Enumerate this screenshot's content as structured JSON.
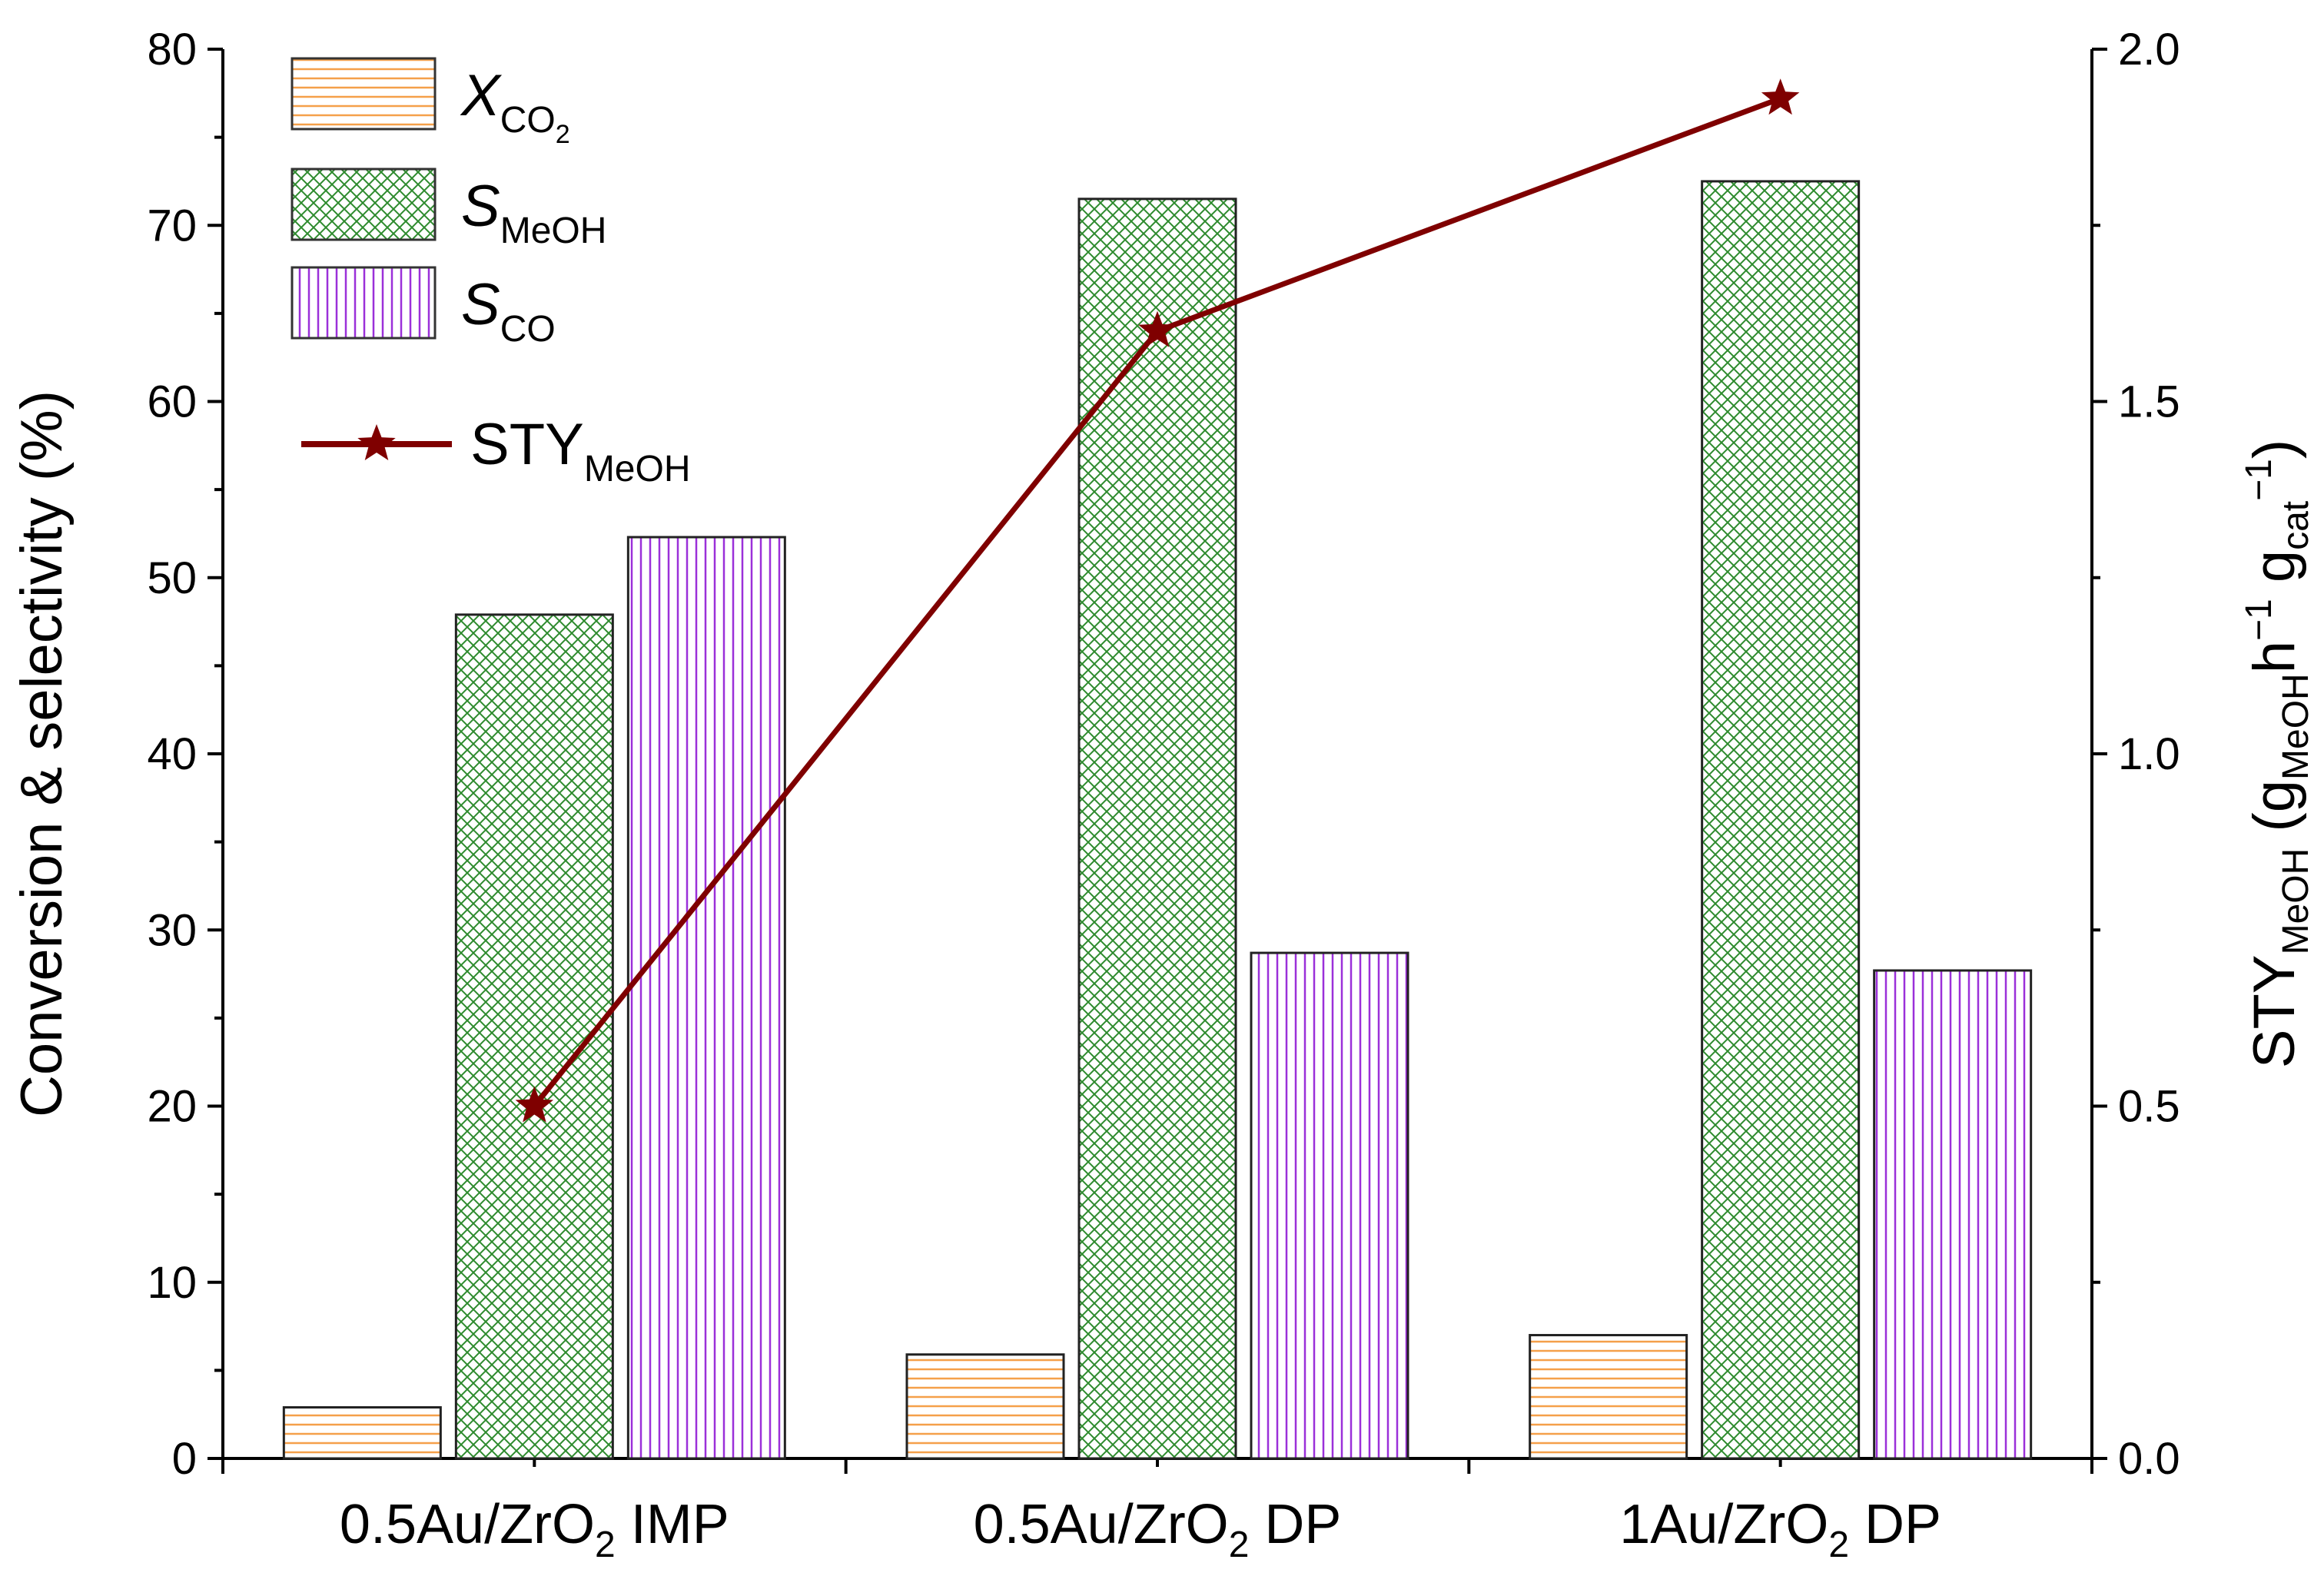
{
  "chart_data": {
    "type": "bar",
    "categories": [
      "0.5Au/ZrO2 IMP",
      "0.5Au/ZrO2 DP",
      "1Au/ZrO2 DP"
    ],
    "category_labels": [
      {
        "main": "0.5Au/ZrO",
        "sub": "2",
        "tail": " IMP"
      },
      {
        "main": "0.5Au/ZrO",
        "sub": "2",
        "tail": " DP"
      },
      {
        "main": "1Au/ZrO",
        "sub": "2",
        "tail": " DP"
      }
    ],
    "series": [
      {
        "name": "X_CO2",
        "label_main": "X",
        "label_sub": "CO",
        "label_subsub": "2",
        "values": [
          2.9,
          5.9,
          7.0
        ],
        "color": "#f5a04a",
        "pattern": "horizontal-lines",
        "axis": "left"
      },
      {
        "name": "S_MeOH",
        "label_main": "S",
        "label_sub": "MeOH",
        "values": [
          47.9,
          71.5,
          72.5
        ],
        "color": "#2e8b2e",
        "pattern": "crosshatch",
        "axis": "left"
      },
      {
        "name": "S_CO",
        "label_main": "S",
        "label_sub": "CO",
        "values": [
          52.3,
          28.7,
          27.7
        ],
        "color": "#9b30d9",
        "pattern": "vertical-lines",
        "axis": "left"
      }
    ],
    "line_series": {
      "name": "STY_MeOH",
      "label_main": "STY",
      "label_sub": "MeOH",
      "values": [
        0.5,
        1.6,
        1.93
      ],
      "color": "#7f0000",
      "marker": "star",
      "axis": "right"
    },
    "ylabel": "Conversion & selectivity (%)",
    "ylim": [
      0,
      80
    ],
    "yticks": [
      0,
      10,
      20,
      30,
      40,
      50,
      60,
      70,
      80
    ],
    "y2label": {
      "main": "STY",
      "sub1": "MeOH",
      "mid": " (g",
      "sub2": "MeOH",
      "h": "h",
      "sup1": "−1",
      "g": " g",
      "sub3": "cat",
      "sup2": "−1",
      "close": ")"
    },
    "y2lim": [
      0,
      2.0
    ],
    "y2ticks": [
      "0.0",
      "0.5",
      "1.0",
      "1.5",
      "2.0"
    ],
    "legend_position": "top-left",
    "grid": false
  }
}
